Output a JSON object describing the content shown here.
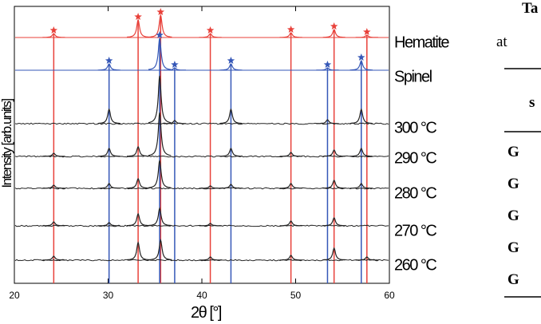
{
  "chart_data": {
    "type": "xrd",
    "xlabel": "2θ [°]",
    "ylabel": "Intensity [arb.units]",
    "xlim": [
      20,
      60
    ],
    "xticks": [
      20,
      30,
      40,
      50,
      60
    ],
    "series": [
      {
        "name": "Hematite",
        "color": "#e8413a",
        "marker": "star",
        "x": [
          24.2,
          33.2,
          35.6,
          40.9,
          49.5,
          54.1,
          57.6
        ],
        "values": [
          5,
          22,
          28,
          5,
          6,
          10,
          3
        ]
      },
      {
        "name": "Spinel",
        "color": "#3557b7",
        "marker": "star",
        "x": [
          30.1,
          35.5,
          37.1,
          43.1,
          53.4,
          57.0
        ],
        "values": [
          8,
          40,
          3,
          8,
          3,
          12
        ]
      },
      {
        "name": "300 °C",
        "color": "#222222",
        "x": [
          30.1,
          35.5,
          37.1,
          43.1,
          53.4,
          57.0
        ],
        "values": [
          18,
          60,
          4,
          18,
          5,
          18
        ]
      },
      {
        "name": "290 °C",
        "color": "#222222",
        "x": [
          24.2,
          30.1,
          33.2,
          35.5,
          43.1,
          49.5,
          54.1,
          57.0
        ],
        "values": [
          4,
          10,
          12,
          55,
          10,
          5,
          8,
          10
        ]
      },
      {
        "name": "280 °C",
        "color": "#222222",
        "x": [
          24.2,
          30.1,
          33.2,
          35.5,
          40.9,
          43.1,
          49.5,
          54.1,
          57.0
        ],
        "values": [
          4,
          6,
          12,
          35,
          3,
          5,
          6,
          10,
          6
        ]
      },
      {
        "name": "270 °C",
        "color": "#222222",
        "x": [
          24.2,
          30.1,
          33.2,
          35.5,
          40.9,
          49.5,
          54.1
        ],
        "values": [
          5,
          4,
          15,
          22,
          3,
          6,
          10
        ]
      },
      {
        "name": "260 °C",
        "color": "#222222",
        "x": [
          24.2,
          33.2,
          35.6,
          40.9,
          49.5,
          54.1,
          57.6
        ],
        "values": [
          5,
          22,
          25,
          4,
          6,
          15,
          4
        ]
      }
    ]
  },
  "table": {
    "title": "Ta",
    "subtitle": "at",
    "header": "s",
    "rows": [
      "G",
      "G",
      "G",
      "G",
      "G"
    ]
  }
}
